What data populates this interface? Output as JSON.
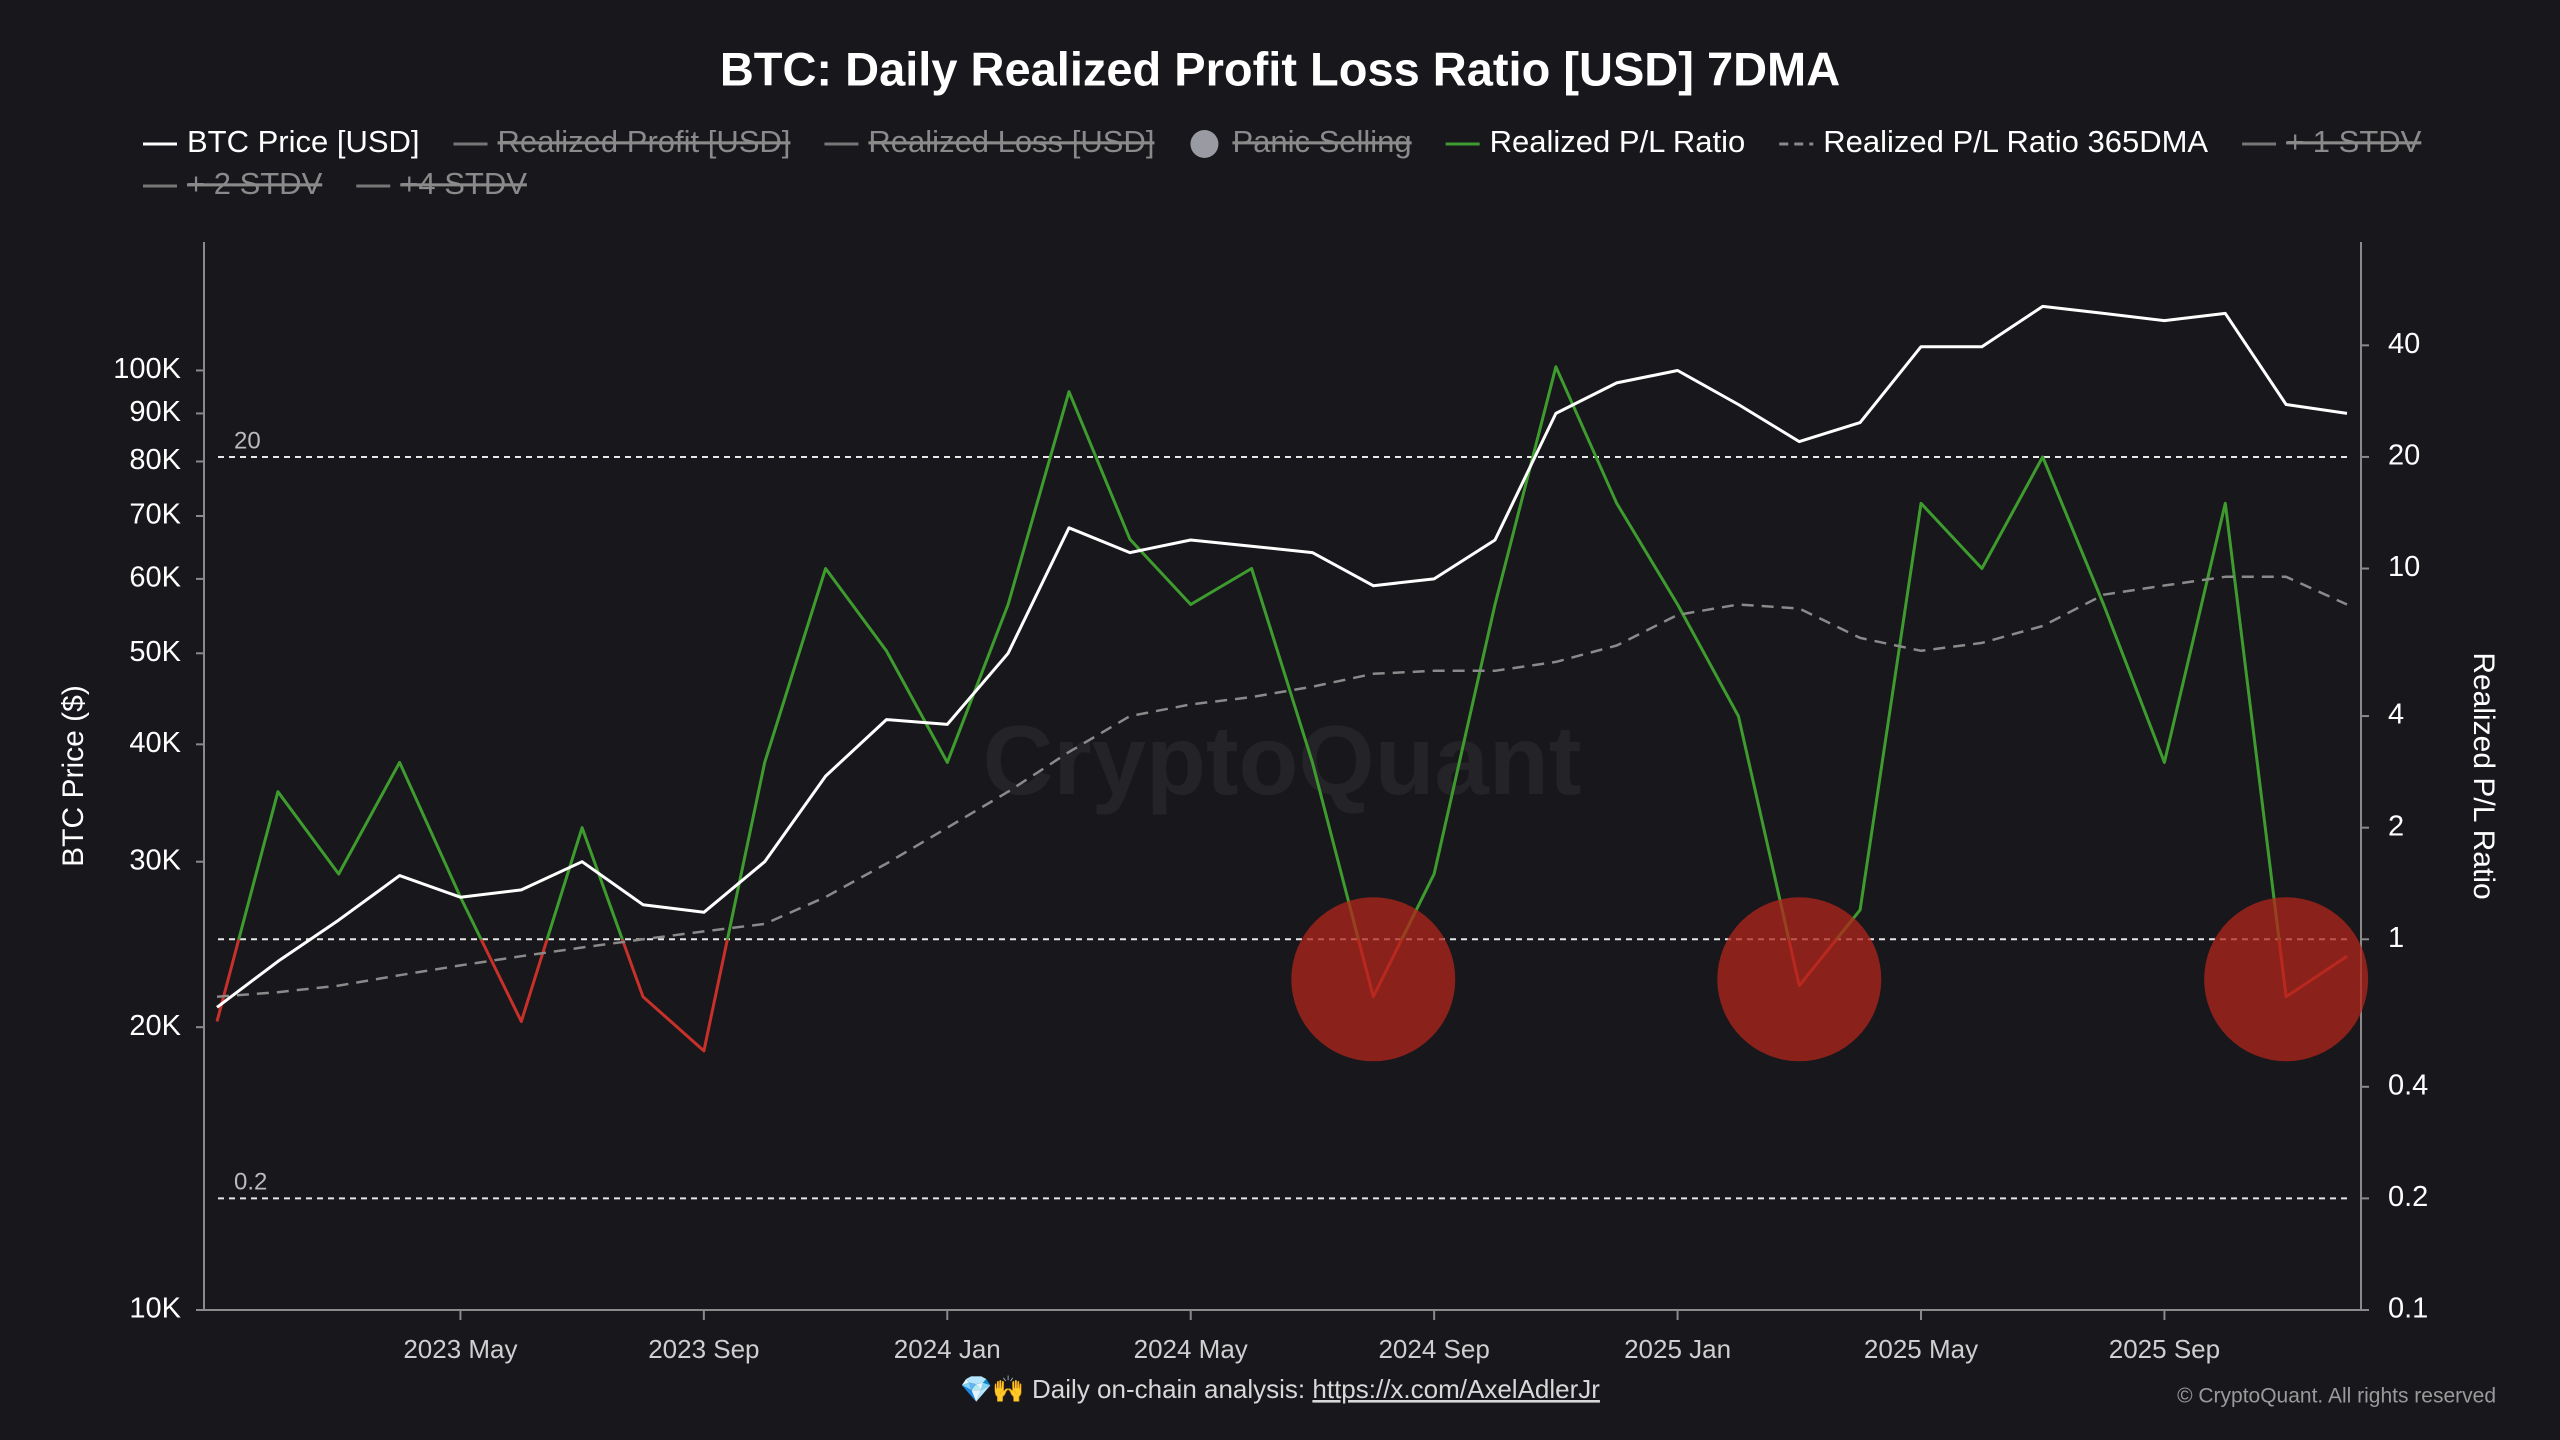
{
  "chart_data": {
    "type": "line",
    "title": "BTC: Daily Realized Profit Loss Ratio [USD] 7DMA",
    "x": [
      "2023-01",
      "2023-02",
      "2023-03",
      "2023-04",
      "2023-05",
      "2023-06",
      "2023-07",
      "2023-08",
      "2023-09",
      "2023-10",
      "2023-11",
      "2023-12",
      "2024-01",
      "2024-02",
      "2024-03",
      "2024-04",
      "2024-05",
      "2024-06",
      "2024-07",
      "2024-08",
      "2024-09",
      "2024-10",
      "2024-11",
      "2024-12",
      "2025-01",
      "2025-02",
      "2025-03",
      "2025-04",
      "2025-05",
      "2025-06",
      "2025-07",
      "2025-08",
      "2025-09",
      "2025-10",
      "2025-11",
      "2025-12"
    ],
    "xlim": [
      "2023-01",
      "2025-12"
    ],
    "xticks": [
      {
        "value": "2023-05",
        "label": "2023 May"
      },
      {
        "value": "2023-09",
        "label": "2023 Sep"
      },
      {
        "value": "2024-01",
        "label": "2024 Jan"
      },
      {
        "value": "2024-05",
        "label": "2024 May"
      },
      {
        "value": "2024-09",
        "label": "2024 Sep"
      },
      {
        "value": "2025-01",
        "label": "2025 Jan"
      },
      {
        "value": "2025-05",
        "label": "2025 May"
      },
      {
        "value": "2025-09",
        "label": "2025 Sep"
      }
    ],
    "ylabel": "BTC Price ($)",
    "y2label": "Realized P/L Ratio",
    "log_scale": true,
    "ylim": [
      10000,
      137000
    ],
    "yticks": [
      {
        "value": 10000,
        "label": "10K"
      },
      {
        "value": 20000,
        "label": "20K"
      },
      {
        "value": 30000,
        "label": "30K"
      },
      {
        "value": 40000,
        "label": "40K"
      },
      {
        "value": 50000,
        "label": "50K"
      },
      {
        "value": 60000,
        "label": "60K"
      },
      {
        "value": 70000,
        "label": "70K"
      },
      {
        "value": 80000,
        "label": "80K"
      },
      {
        "value": 90000,
        "label": "90K"
      },
      {
        "value": 100000,
        "label": "100K"
      }
    ],
    "y2lim": [
      0.1,
      76
    ],
    "y2ticks": [
      0.1,
      0.2,
      0.4,
      1,
      2,
      4,
      10,
      20,
      40
    ],
    "series": [
      {
        "name": "BTC Price [USD]",
        "color": "#ffffff",
        "symbol": "line",
        "visible": true,
        "axis": "y",
        "values": [
          21000,
          23500,
          26000,
          29000,
          27500,
          28000,
          30000,
          27000,
          26500,
          30000,
          37000,
          42500,
          42000,
          50000,
          68000,
          64000,
          66000,
          65000,
          64000,
          59000,
          60000,
          66000,
          90000,
          97000,
          100000,
          92000,
          84000,
          88000,
          106000,
          106000,
          117000,
          115000,
          113000,
          115000,
          92000,
          90000
        ]
      },
      {
        "name": "Realized Profit [USD]",
        "color": "#777777",
        "symbol": "line",
        "visible": false
      },
      {
        "name": "Realized Loss [USD]",
        "color": "#777777",
        "symbol": "line",
        "visible": false
      },
      {
        "name": "Panic Selling",
        "color": "#9a9aa2",
        "symbol": "dot",
        "visible": false
      },
      {
        "name": "Realized P/L Ratio",
        "color": "#3e9b2e",
        "color_below": "#c8302a",
        "threshold": 1,
        "symbol": "line",
        "visible": true,
        "axis": "y2",
        "values": [
          0.6,
          2.5,
          1.5,
          3,
          1.3,
          0.6,
          2,
          0.7,
          0.5,
          3,
          10,
          6,
          3,
          8,
          30,
          12,
          8,
          10,
          3,
          0.7,
          1.5,
          8,
          35,
          15,
          8,
          4,
          0.75,
          1.2,
          15,
          10,
          20,
          8,
          3,
          15,
          0.7,
          0.9
        ]
      },
      {
        "name": "Realized P/L Ratio 365DMA",
        "color": "#8a8a8a",
        "symbol": "dash",
        "visible": true,
        "axis": "y2",
        "values": [
          0.7,
          0.72,
          0.75,
          0.8,
          0.85,
          0.9,
          0.95,
          1.0,
          1.05,
          1.1,
          1.3,
          1.6,
          2.0,
          2.5,
          3.2,
          4.0,
          4.3,
          4.5,
          4.8,
          5.2,
          5.3,
          5.3,
          5.6,
          6.2,
          7.5,
          8.0,
          7.8,
          6.5,
          6.0,
          6.3,
          7.0,
          8.5,
          9.0,
          9.5,
          9.5,
          8.0
        ]
      },
      {
        "name": "+ 1 STDV",
        "color": "#777777",
        "symbol": "line",
        "visible": false
      },
      {
        "name": "+ 2 STDV",
        "color": "#777777",
        "symbol": "line",
        "visible": false
      },
      {
        "name": "+4 STDV",
        "color": "#777777",
        "symbol": "line",
        "visible": false
      }
    ],
    "reference_lines": [
      {
        "value": 20,
        "label": "20"
      },
      {
        "value": 1
      },
      {
        "value": 0.2,
        "label": "0.2"
      }
    ],
    "highlights": [
      {
        "x": "2024-08",
        "y": 0.78
      },
      {
        "x": "2025-03",
        "y": 0.78
      },
      {
        "x": "2025-11",
        "y": 0.78
      }
    ],
    "highlight_color": "#b3261b",
    "watermark": "CryptoQuant",
    "footer": {
      "text": "💎🙌 Daily on-chain analysis: ",
      "link": "https://x.com/AxelAdlerJr"
    },
    "copyright": "© CryptoQuant. All rights reserved"
  }
}
